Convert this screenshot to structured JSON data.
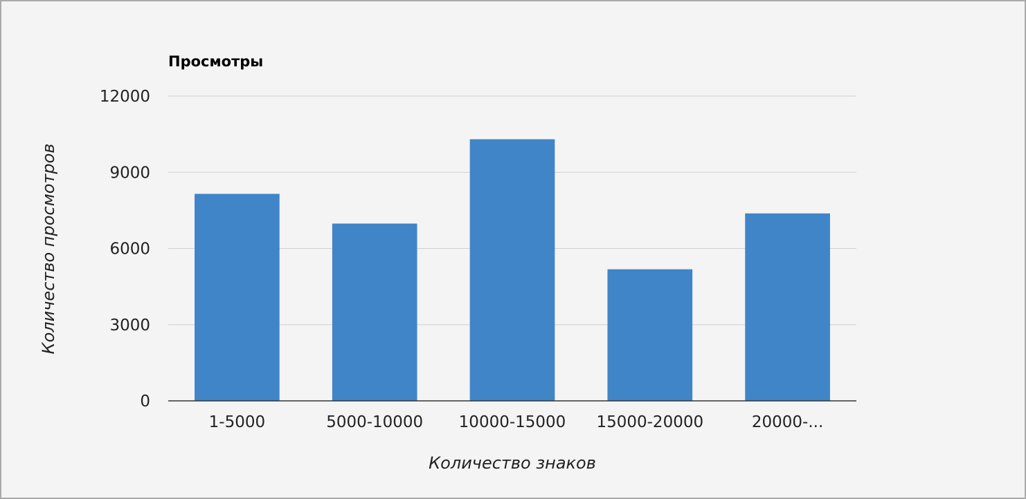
{
  "chart_data": {
    "type": "bar",
    "title": "Просмотры",
    "xlabel": "Количество знаков",
    "ylabel": "Количество просмотров",
    "categories": [
      "1-5000",
      "5000-10000",
      "10000-15000",
      "15000-20000",
      "20000-..."
    ],
    "series": [
      {
        "values": [
          8150,
          6980,
          10300,
          5180,
          7380
        ],
        "color": "#3f85c8"
      }
    ],
    "ylim": [
      0,
      12000
    ],
    "yticks": [
      "0",
      "3000",
      "6000",
      "9000",
      "12000"
    ],
    "grid": true,
    "legend": "none"
  }
}
